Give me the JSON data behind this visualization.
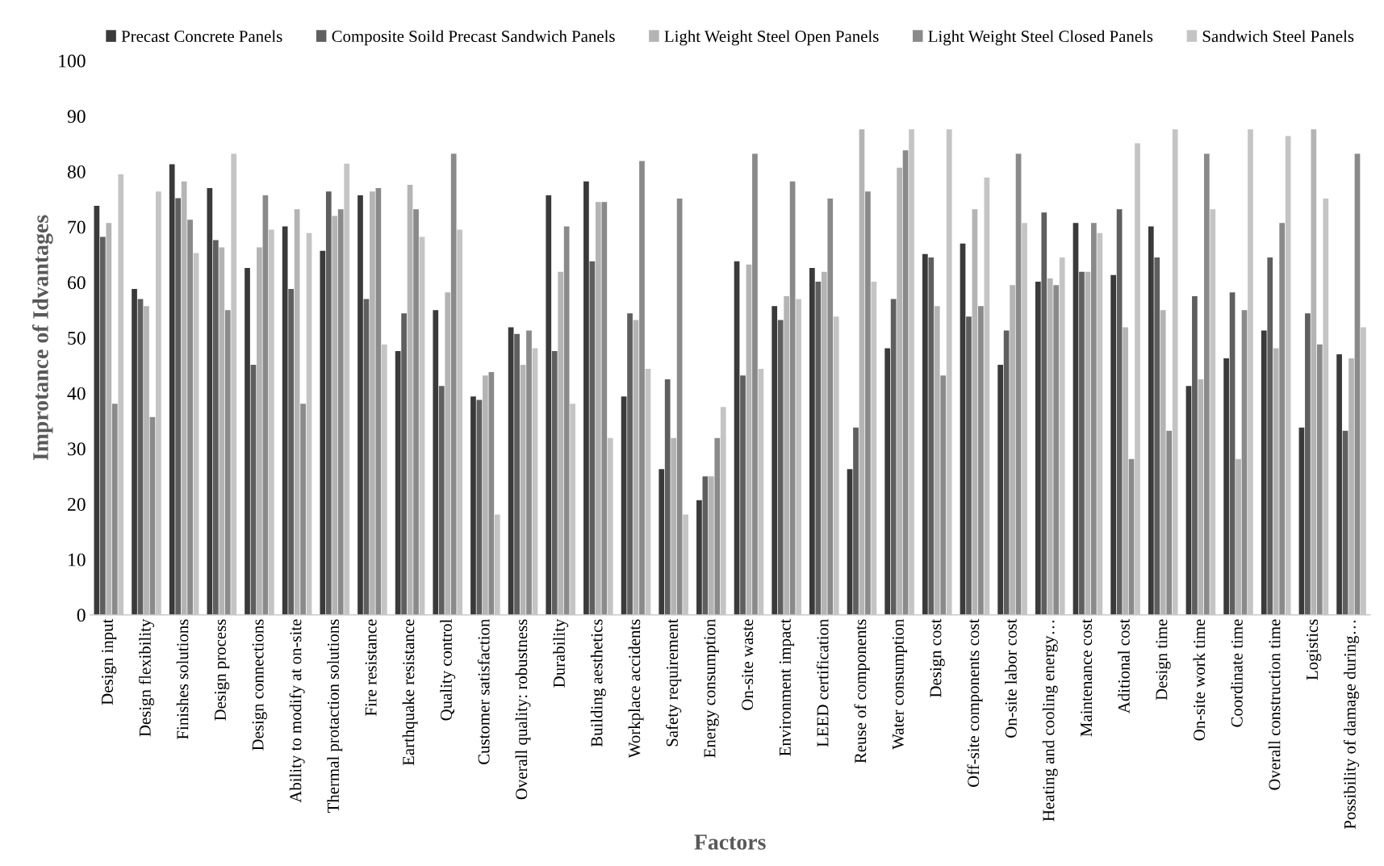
{
  "chart_data": {
    "type": "bar",
    "xlabel": "Factors",
    "ylabel": "Improtance of Idvantages",
    "ylim": [
      0,
      100
    ],
    "yticks": [
      0,
      10,
      20,
      30,
      40,
      50,
      60,
      70,
      80,
      90,
      100
    ],
    "grid": false,
    "legend": "top",
    "categories": [
      "Design input",
      "Design flexibility",
      "Finishes solutions",
      "Design process",
      "Design connections",
      "Ability to modify at on-site",
      "Thermal protaction solutions",
      "Fire resistance",
      "Earthquake resistance",
      "Quality control",
      "Customer satisfaction",
      "Overall quality: robustness",
      "Durability",
      "Building aesthetics",
      "Workplace accidents",
      "Safety requirement",
      "Energy consumption",
      "On-site waste",
      "Environment impact",
      "LEED certification",
      "Reuse of components",
      "Water consumption",
      "Design cost",
      "Off-site components cost",
      "On-site labor cost",
      "Heating and cooling energy…",
      "Maintenance cost",
      "Aditional cost",
      "Design time",
      "On-site work time",
      "Coordinate time",
      "Overall construction time",
      "Logistics",
      "Possibility of damage during…"
    ],
    "series": [
      {
        "name": "Precast Concrete Panels",
        "color": "#3a3a3a",
        "values": [
          73.8,
          58.8,
          81.3,
          77.0,
          62.6,
          70.1,
          65.7,
          75.7,
          47.6,
          55.0,
          39.4,
          51.9,
          75.7,
          78.2,
          39.4,
          26.3,
          20.7,
          63.8,
          55.7,
          62.6,
          26.3,
          48.1,
          65.1,
          67.0,
          45.1,
          60.1,
          70.7,
          61.3,
          70.1,
          41.3,
          46.3,
          51.3,
          33.8,
          47.0
        ]
      },
      {
        "name": "Composite Soild Precast Sandwich Panels",
        "color": "#5f5f5f",
        "values": [
          68.2,
          57.0,
          75.2,
          67.6,
          45.1,
          58.8,
          76.4,
          57.0,
          54.4,
          41.3,
          38.8,
          50.7,
          47.6,
          63.8,
          54.4,
          42.5,
          25.0,
          43.2,
          53.2,
          60.1,
          33.8,
          57.0,
          64.5,
          53.8,
          51.3,
          72.6,
          61.9,
          73.2,
          64.5,
          57.5,
          58.2,
          64.5,
          54.4,
          33.2
        ]
      },
      {
        "name": "Light Weight Steel Open Panels",
        "color": "#b4b4b4",
        "values": [
          70.7,
          55.7,
          78.2,
          66.3,
          66.3,
          73.2,
          72.0,
          76.4,
          77.6,
          58.2,
          43.2,
          45.1,
          61.9,
          74.5,
          53.2,
          31.9,
          25.0,
          63.2,
          57.5,
          61.9,
          87.6,
          80.7,
          55.7,
          73.2,
          59.5,
          60.7,
          61.9,
          51.9,
          55.0,
          42.5,
          28.1,
          48.1,
          87.6,
          46.3
        ]
      },
      {
        "name": "Light Weight Steel Closed Panels",
        "color": "#8a8a8a",
        "values": [
          38.1,
          35.7,
          71.3,
          55.0,
          75.7,
          38.1,
          73.2,
          77.0,
          73.2,
          83.2,
          43.8,
          51.3,
          70.1,
          74.5,
          81.9,
          75.1,
          31.9,
          83.2,
          78.2,
          75.1,
          76.4,
          83.8,
          43.2,
          55.7,
          83.2,
          59.5,
          70.7,
          28.1,
          33.2,
          83.2,
          55.0,
          70.7,
          48.8,
          83.2
        ]
      },
      {
        "name": "Sandwich Steel Panels",
        "color": "#c4c4c4",
        "values": [
          79.5,
          76.4,
          65.3,
          83.2,
          69.5,
          68.9,
          81.4,
          48.8,
          68.2,
          69.5,
          18.1,
          48.1,
          38.1,
          31.9,
          44.4,
          18.1,
          37.5,
          44.4,
          57.0,
          53.8,
          60.1,
          87.6,
          87.6,
          78.9,
          70.7,
          64.5,
          68.9,
          85.1,
          87.6,
          73.2,
          87.6,
          86.4,
          75.1,
          51.9
        ]
      }
    ]
  }
}
